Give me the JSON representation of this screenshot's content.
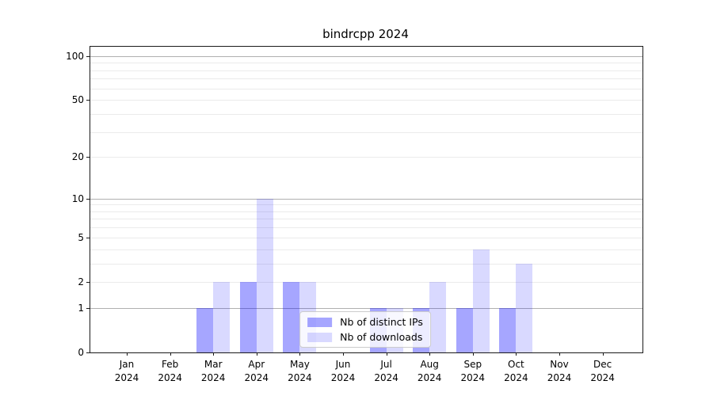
{
  "title": "bindrcpp 2024",
  "chart_data": {
    "type": "bar",
    "title": "bindrcpp 2024",
    "x_tick_months": [
      "Jan",
      "Feb",
      "Mar",
      "Apr",
      "May",
      "Jun",
      "Jul",
      "Aug",
      "Sep",
      "Oct",
      "Nov",
      "Dec"
    ],
    "x_tick_year": "2024",
    "series": [
      {
        "name": "Nb of distinct IPs",
        "color": "rgba(0,0,255,0.35)",
        "values": [
          0,
          0,
          1,
          2,
          2,
          0,
          1,
          1,
          1,
          1,
          0,
          0
        ]
      },
      {
        "name": "Nb of downloads",
        "color": "rgba(0,0,255,0.15)",
        "values": [
          0,
          0,
          2,
          10,
          2,
          0,
          1,
          2,
          4,
          3,
          0,
          0
        ]
      }
    ],
    "y_axis": {
      "scale": "log1p",
      "ticks": [
        0,
        1,
        2,
        5,
        10,
        20,
        50,
        100
      ],
      "minor_gridlines": [
        3,
        4,
        6,
        7,
        8,
        9,
        30,
        40,
        60,
        70,
        80,
        90
      ],
      "major_gridlines": [
        1,
        10,
        100
      ],
      "ylim": [
        0,
        116
      ]
    },
    "legend": {
      "position": "lower center"
    },
    "colors": {
      "major_grid": "#b0b0b0",
      "minor_grid": "#ebebeb",
      "spine": "#1a1a1a",
      "legend_border": "#cccccc"
    }
  }
}
